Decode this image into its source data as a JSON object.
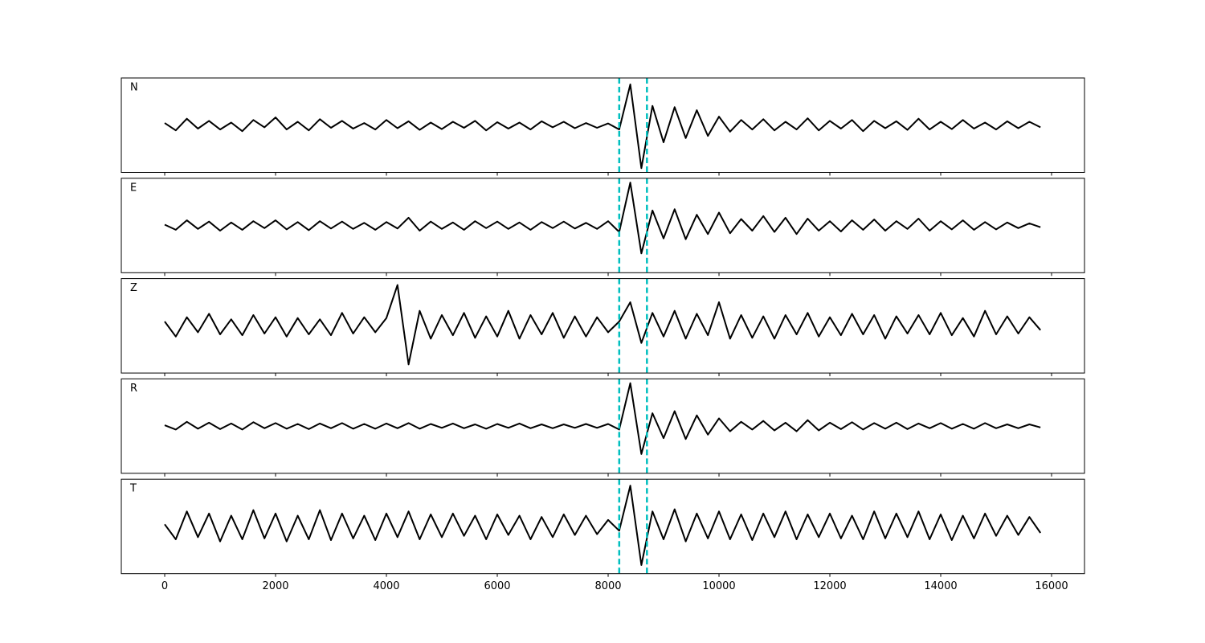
{
  "chart_data": {
    "type": "line",
    "subplots": true,
    "x": [
      0,
      200,
      400,
      600,
      800,
      1000,
      1200,
      1400,
      1600,
      1800,
      2000,
      2200,
      2400,
      2600,
      2800,
      3000,
      3200,
      3400,
      3600,
      3800,
      4000,
      4200,
      4400,
      4600,
      4800,
      5000,
      5200,
      5400,
      5600,
      5800,
      6000,
      6200,
      6400,
      6600,
      6800,
      7000,
      7200,
      7400,
      7600,
      7800,
      8000,
      8200,
      8400,
      8600,
      8800,
      9000,
      9200,
      9400,
      9600,
      9800,
      10000,
      10200,
      10400,
      10600,
      10800,
      11000,
      11200,
      11400,
      11600,
      11800,
      12000,
      12200,
      12400,
      12600,
      12800,
      13000,
      13200,
      13400,
      13600,
      13800,
      14000,
      14200,
      14400,
      14600,
      14800,
      15000,
      15200,
      15400,
      15600,
      15800
    ],
    "series": [
      {
        "name": "N",
        "color": "#000000",
        "values": [
          0.05,
          -0.12,
          0.15,
          -0.08,
          0.1,
          -0.1,
          0.06,
          -0.14,
          0.12,
          -0.05,
          0.18,
          -0.1,
          0.08,
          -0.12,
          0.14,
          -0.06,
          0.1,
          -0.08,
          0.05,
          -0.1,
          0.12,
          -0.07,
          0.09,
          -0.11,
          0.06,
          -0.09,
          0.08,
          -0.06,
          0.1,
          -0.12,
          0.07,
          -0.08,
          0.06,
          -0.1,
          0.09,
          -0.05,
          0.08,
          -0.07,
          0.05,
          -0.06,
          0.04,
          -0.1,
          0.95,
          -1.0,
          0.45,
          -0.4,
          0.42,
          -0.3,
          0.35,
          -0.25,
          0.2,
          -0.15,
          0.12,
          -0.1,
          0.14,
          -0.12,
          0.08,
          -0.1,
          0.16,
          -0.12,
          0.1,
          -0.08,
          0.12,
          -0.14,
          0.1,
          -0.07,
          0.09,
          -0.11,
          0.15,
          -0.1,
          0.08,
          -0.09,
          0.12,
          -0.08,
          0.06,
          -0.1,
          0.09,
          -0.07,
          0.08,
          -0.05
        ]
      },
      {
        "name": "E",
        "color": "#000000",
        "values": [
          0.02,
          -0.1,
          0.12,
          -0.08,
          0.09,
          -0.12,
          0.07,
          -0.1,
          0.1,
          -0.06,
          0.12,
          -0.09,
          0.08,
          -0.11,
          0.1,
          -0.07,
          0.09,
          -0.08,
          0.06,
          -0.1,
          0.08,
          -0.07,
          0.18,
          -0.12,
          0.09,
          -0.08,
          0.07,
          -0.1,
          0.1,
          -0.06,
          0.09,
          -0.08,
          0.07,
          -0.1,
          0.08,
          -0.06,
          0.09,
          -0.07,
          0.06,
          -0.08,
          0.1,
          -0.15,
          1.0,
          -0.65,
          0.35,
          -0.3,
          0.38,
          -0.32,
          0.25,
          -0.2,
          0.3,
          -0.18,
          0.15,
          -0.12,
          0.22,
          -0.15,
          0.18,
          -0.2,
          0.16,
          -0.12,
          0.1,
          -0.14,
          0.12,
          -0.1,
          0.14,
          -0.12,
          0.1,
          -0.08,
          0.16,
          -0.12,
          0.1,
          -0.09,
          0.12,
          -0.1,
          0.08,
          -0.09,
          0.07,
          -0.06,
          0.05,
          -0.04
        ]
      },
      {
        "name": "Z",
        "color": "#000000",
        "values": [
          0.1,
          -0.25,
          0.2,
          -0.15,
          0.28,
          -0.2,
          0.15,
          -0.22,
          0.25,
          -0.18,
          0.2,
          -0.25,
          0.18,
          -0.2,
          0.15,
          -0.22,
          0.3,
          -0.18,
          0.2,
          -0.15,
          0.18,
          0.95,
          -0.9,
          0.35,
          -0.3,
          0.25,
          -0.22,
          0.3,
          -0.28,
          0.22,
          -0.25,
          0.35,
          -0.3,
          0.25,
          -0.2,
          0.3,
          -0.28,
          0.22,
          -0.25,
          0.2,
          -0.15,
          0.1,
          0.55,
          -0.4,
          0.3,
          -0.25,
          0.35,
          -0.3,
          0.28,
          -0.22,
          0.55,
          -0.3,
          0.25,
          -0.28,
          0.22,
          -0.3,
          0.25,
          -0.2,
          0.3,
          -0.25,
          0.2,
          -0.22,
          0.28,
          -0.2,
          0.25,
          -0.3,
          0.22,
          -0.18,
          0.25,
          -0.2,
          0.3,
          -0.22,
          0.18,
          -0.25,
          0.35,
          -0.2,
          0.22,
          -0.18,
          0.2,
          -0.1
        ]
      },
      {
        "name": "R",
        "color": "#000000",
        "values": [
          0.02,
          -0.08,
          0.1,
          -0.06,
          0.08,
          -0.07,
          0.06,
          -0.08,
          0.09,
          -0.05,
          0.07,
          -0.06,
          0.05,
          -0.07,
          0.06,
          -0.05,
          0.07,
          -0.06,
          0.05,
          -0.06,
          0.06,
          -0.05,
          0.07,
          -0.06,
          0.05,
          -0.04,
          0.06,
          -0.05,
          0.04,
          -0.06,
          0.05,
          -0.04,
          0.06,
          -0.05,
          0.04,
          -0.05,
          0.04,
          -0.04,
          0.05,
          -0.04,
          0.05,
          -0.08,
          1.0,
          -0.65,
          0.3,
          -0.28,
          0.35,
          -0.3,
          0.25,
          -0.2,
          0.18,
          -0.12,
          0.1,
          -0.08,
          0.12,
          -0.1,
          0.08,
          -0.12,
          0.14,
          -0.1,
          0.08,
          -0.07,
          0.09,
          -0.08,
          0.07,
          -0.06,
          0.08,
          -0.07,
          0.06,
          -0.05,
          0.07,
          -0.06,
          0.05,
          -0.06,
          0.07,
          -0.05,
          0.04,
          -0.05,
          0.04,
          -0.03
        ]
      },
      {
        "name": "T",
        "color": "#000000",
        "values": [
          0.05,
          -0.3,
          0.35,
          -0.25,
          0.3,
          -0.35,
          0.25,
          -0.3,
          0.38,
          -0.28,
          0.3,
          -0.35,
          0.25,
          -0.3,
          0.38,
          -0.32,
          0.3,
          -0.28,
          0.25,
          -0.32,
          0.3,
          -0.25,
          0.35,
          -0.3,
          0.28,
          -0.25,
          0.3,
          -0.22,
          0.25,
          -0.3,
          0.28,
          -0.2,
          0.25,
          -0.3,
          0.22,
          -0.25,
          0.28,
          -0.2,
          0.25,
          -0.18,
          0.15,
          -0.1,
          0.95,
          -0.9,
          0.35,
          -0.3,
          0.4,
          -0.35,
          0.3,
          -0.28,
          0.35,
          -0.3,
          0.28,
          -0.32,
          0.3,
          -0.25,
          0.35,
          -0.3,
          0.28,
          -0.25,
          0.3,
          -0.28,
          0.25,
          -0.3,
          0.35,
          -0.28,
          0.3,
          -0.25,
          0.35,
          -0.3,
          0.28,
          -0.32,
          0.25,
          -0.28,
          0.3,
          -0.22,
          0.25,
          -0.2,
          0.22,
          -0.15
        ]
      }
    ],
    "vlines": [
      8200,
      8700
    ],
    "vline_color": "#00bfbf",
    "vline_style": "dashed",
    "xlim": [
      -783,
      16594
    ],
    "ylim": [
      -1.1,
      1.1
    ],
    "xticks": [
      0,
      2000,
      4000,
      6000,
      8000,
      10000,
      12000,
      14000,
      16000
    ]
  }
}
